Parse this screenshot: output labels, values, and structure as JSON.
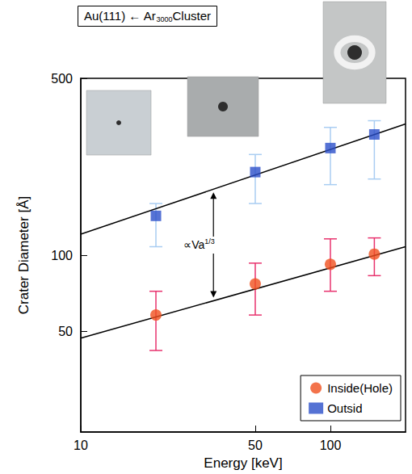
{
  "chart_data": {
    "type": "scatter",
    "title": "Au(111) ← Ar3000Cluster",
    "x_label": "Energy [keV]",
    "y_label": "Crater Diameter [Å]",
    "annotation": "∝Va1/3",
    "log": true,
    "grid": false,
    "legend": "lower right",
    "xlim": [
      10,
      200
    ],
    "ylim": [
      20,
      500
    ],
    "xticks": [
      10,
      50,
      100
    ],
    "yticks": [
      50,
      100,
      500
    ],
    "series": [
      {
        "name": "Inside(Hole)",
        "type": "scatter",
        "marker": "circle",
        "color": "#f0501e",
        "x": [
          20,
          50,
          100,
          150
        ],
        "values": [
          58,
          77,
          92,
          101
        ],
        "error_low": [
          42,
          58,
          72,
          83
        ],
        "error_high": [
          72,
          93,
          116,
          117
        ]
      },
      {
        "name": "Outsid",
        "type": "scatter",
        "marker": "square",
        "color": "#2b4fc9",
        "x": [
          20,
          50,
          100,
          150
        ],
        "values": [
          143,
          213,
          265,
          300
        ],
        "error_low": [
          108,
          160,
          190,
          200
        ],
        "error_high": [
          160,
          250,
          320,
          340
        ]
      }
    ],
    "fit_lines": [
      {
        "type": "line",
        "color": "#000000",
        "x": [
          10,
          200
        ],
        "values": [
          47,
          108
        ]
      },
      {
        "type": "line",
        "color": "#000000",
        "x": [
          10,
          200
        ],
        "values": [
          121,
          330
        ]
      }
    ]
  }
}
